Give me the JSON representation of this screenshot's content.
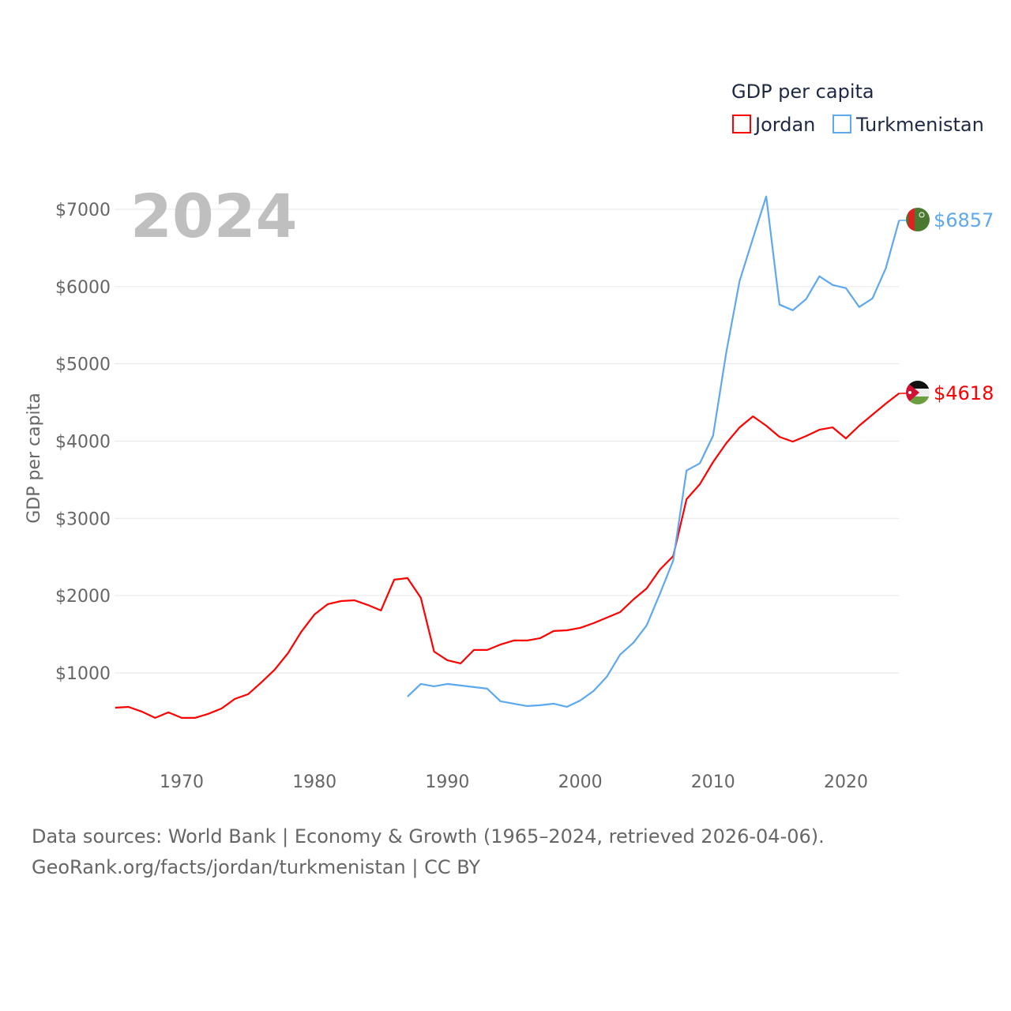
{
  "chart_data": {
    "type": "line",
    "ylabel": "GDP per capita",
    "xlabel": "",
    "year_label": "2024",
    "ylim": [
      0,
      7500
    ],
    "xlim": [
      1965,
      2024
    ],
    "grid": true,
    "y_ticks": [
      1000,
      2000,
      3000,
      4000,
      5000,
      6000,
      7000
    ],
    "y_tick_labels": [
      "$1000",
      "$2000",
      "$3000",
      "$4000",
      "$5000",
      "$6000",
      "$7000"
    ],
    "x_ticks": [
      1970,
      1980,
      1990,
      2000,
      2010,
      2020
    ],
    "x_tick_labels": [
      "1970",
      "1980",
      "1990",
      "2000",
      "2010",
      "2020"
    ],
    "legend": {
      "title": "GDP per capita",
      "position": "top-right"
    },
    "series": [
      {
        "name": "Jordan",
        "color": "#ff0000",
        "start_year": 1965,
        "end_label": "$4618",
        "values": [
          550,
          560,
          500,
          418,
          490,
          418,
          418,
          470,
          540,
          663,
          725,
          878,
          1042,
          1255,
          1532,
          1757,
          1890,
          1930,
          1940,
          1880,
          1808,
          2207,
          2227,
          1972,
          1276,
          1164,
          1123,
          1297,
          1297,
          1368,
          1420,
          1420,
          1450,
          1542,
          1552,
          1583,
          1644,
          1715,
          1787,
          1950,
          2093,
          2338,
          2512,
          3248,
          3442,
          3729,
          3974,
          4178,
          4321,
          4199,
          4055,
          3994,
          4065,
          4147,
          4178,
          4035,
          4199,
          4342,
          4485,
          4618
        ]
      },
      {
        "name": "Turkmenistan",
        "color": "#5ea8ee",
        "start_year": 1987,
        "end_label": "$6857",
        "values": [
          694,
          858,
          827,
          858,
          837,
          817,
          796,
          633,
          602,
          571,
          582,
          602,
          561,
          643,
          766,
          950,
          1237,
          1390,
          1615,
          2024,
          2454,
          3620,
          3712,
          4070,
          5153,
          6073,
          6625,
          7167,
          5766,
          5694,
          5837,
          6133,
          6021,
          5980,
          5735,
          5847,
          6236,
          6857
        ]
      }
    ]
  },
  "footer": {
    "line1": "Data sources: World Bank | Economy & Growth (1965–2024, retrieved 2026-04-06).",
    "line2": "GeoRank.org/facts/jordan/turkmenistan | CC BY"
  }
}
